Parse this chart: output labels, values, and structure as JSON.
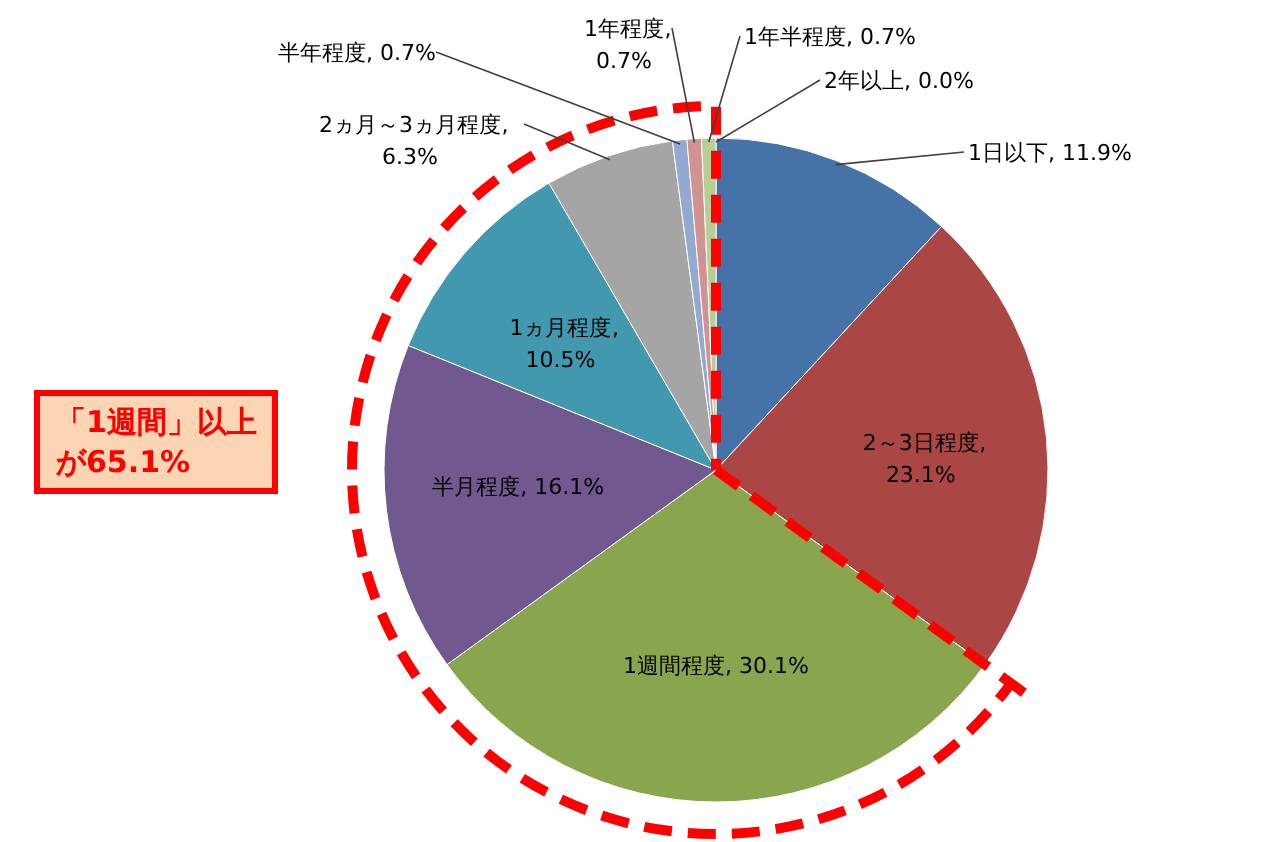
{
  "chart_data": {
    "type": "pie",
    "categories": [
      "1日以下",
      "2～3日程度",
      "1週間程度",
      "半月程度",
      "1ヵ月程度",
      "2ヵ月～3ヵ月程度",
      "半年程度",
      "1年程度",
      "1年半程度",
      "2年以上"
    ],
    "values": [
      11.9,
      23.1,
      30.1,
      16.1,
      10.5,
      6.3,
      0.7,
      0.7,
      0.7,
      0.0
    ],
    "colors": [
      "#4572a7",
      "#aa4643",
      "#89a54e",
      "#71588f",
      "#4198af",
      "#a5a5a5",
      "#93a9cf",
      "#d19392",
      "#b9cd96",
      "#a99bbd"
    ],
    "value_labels": [
      ", 11.9%",
      ", 23.1%",
      ", 30.1%",
      ", 16.1%",
      ", 10.5%",
      ", 6.3%",
      ", 0.7%",
      ", 0.7%",
      ", 0.7%",
      ", 0.0%"
    ],
    "annotations": [
      "「1週間」以上",
      "が65.1%"
    ]
  }
}
